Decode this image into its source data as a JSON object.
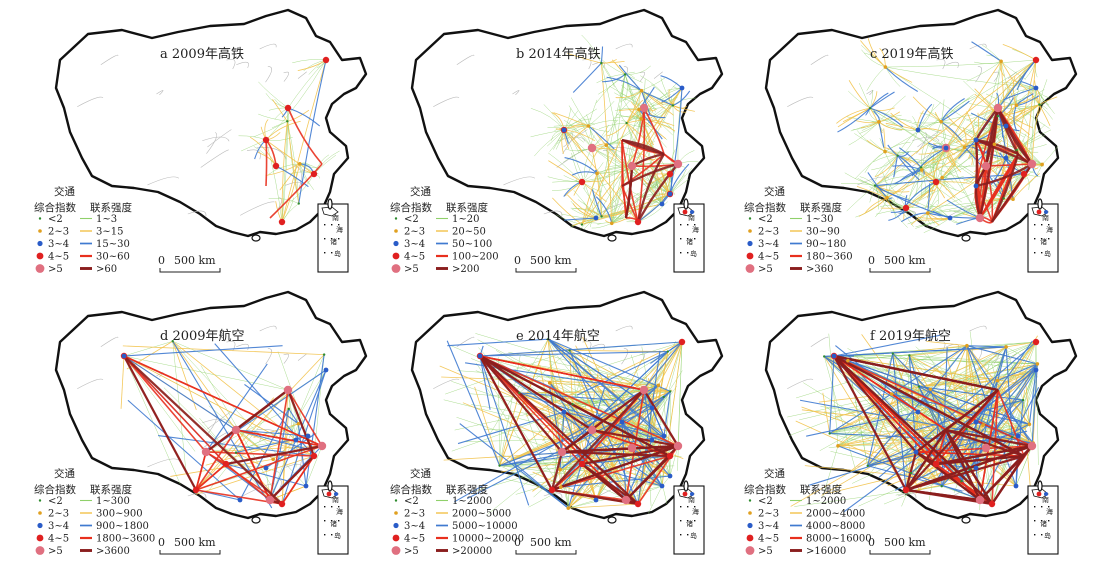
{
  "figure": {
    "panels": [
      {
        "id": "a",
        "title": "a 2009年高铁",
        "legend_header_1": "交通",
        "legend_header_2": "综合指数",
        "legend_header_3": "联系强度",
        "index_classes": [
          "<2",
          "2~3",
          "3~4",
          "4~5",
          ">5"
        ],
        "strength_classes": [
          "1~3",
          "3~15",
          "15~30",
          "30~60",
          ">60"
        ],
        "scale_label": "500 km",
        "scale_zero": "0"
      },
      {
        "id": "b",
        "title": "b 2014年高铁",
        "legend_header_1": "交通",
        "legend_header_2": "综合指数",
        "legend_header_3": "联系强度",
        "index_classes": [
          "<2",
          "2~3",
          "3~4",
          "4~5",
          ">5"
        ],
        "strength_classes": [
          "1~20",
          "20~50",
          "50~100",
          "100~200",
          ">200"
        ],
        "scale_label": "500 km",
        "scale_zero": "0"
      },
      {
        "id": "c",
        "title": "c 2019年高铁",
        "legend_header_1": "交通",
        "legend_header_2": "综合指数",
        "legend_header_3": "联系强度",
        "index_classes": [
          "<2",
          "2~3",
          "3~4",
          "4~5",
          ">5"
        ],
        "strength_classes": [
          "1~30",
          "30~90",
          "90~180",
          "180~360",
          ">360"
        ],
        "scale_label": "500 km",
        "scale_zero": "0"
      },
      {
        "id": "d",
        "title": "d 2009年航空",
        "legend_header_1": "交通",
        "legend_header_2": "综合指数",
        "legend_header_3": "联系强度",
        "index_classes": [
          "<2",
          "2~3",
          "3~4",
          "4~5",
          ">5"
        ],
        "strength_classes": [
          "1~300",
          "300~900",
          "900~1800",
          "1800~3600",
          ">3600"
        ],
        "scale_label": "500 km",
        "scale_zero": "0"
      },
      {
        "id": "e",
        "title": "e 2014年航空",
        "legend_header_1": "交通",
        "legend_header_2": "综合指数",
        "legend_header_3": "联系强度",
        "index_classes": [
          "<2",
          "2~3",
          "3~4",
          "4~5",
          ">5"
        ],
        "strength_classes": [
          "1~2000",
          "2000~5000",
          "5000~10000",
          "10000~20000",
          ">20000"
        ],
        "scale_label": "500 km",
        "scale_zero": "0"
      },
      {
        "id": "f",
        "title": "f 2019年航空",
        "legend_header_1": "交通",
        "legend_header_2": "综合指数",
        "legend_header_3": "联系强度",
        "index_classes": [
          "<2",
          "2~3",
          "3~4",
          "4~5",
          ">5"
        ],
        "strength_classes": [
          "1~2000",
          "2000~4000",
          "4000~8000",
          "8000~16000",
          ">16000"
        ],
        "scale_label": "500 km",
        "scale_zero": "0"
      }
    ],
    "inset_labels": [
      "南",
      "海",
      "诸",
      "岛"
    ],
    "colors": {
      "index": [
        "#2e8b2e",
        "#e0a020",
        "#2a5cc8",
        "#e02020",
        "#e07080"
      ],
      "strength": [
        "#8fd06a",
        "#f2c24a",
        "#3f7ad0",
        "#e8301e",
        "#8a1e1e"
      ],
      "outline": "#111111"
    }
  }
}
